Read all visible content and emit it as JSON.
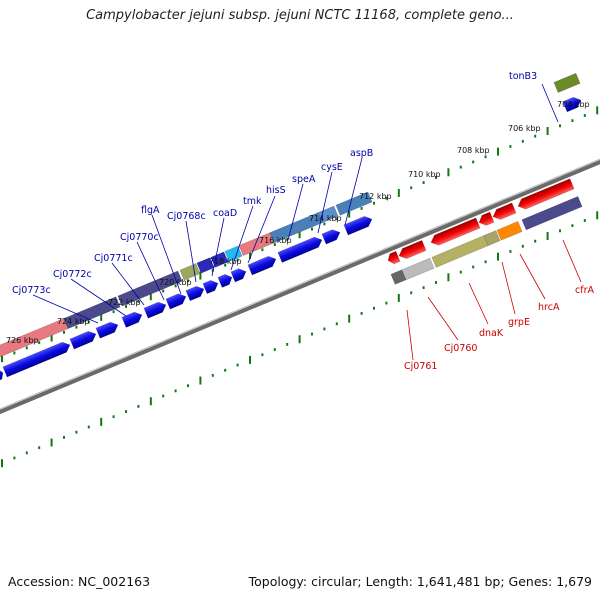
{
  "title": "Campylobacter jejuni subsp. jejuni NCTC 11168, complete geno...",
  "accession": "Accession: NC_002163",
  "topology": "Topology: circular; Length: 1,641,481 bp; Genes: 1,679",
  "ticks": [
    "704 kbp",
    "706 kbp",
    "708 kbp",
    "710 kbp",
    "712 kbp",
    "714 kbp",
    "716 kbp",
    "718 kbp",
    "720 kbp",
    "722 kbp",
    "724 kbp",
    "726 kbp"
  ],
  "genes_forward": [
    "tonB3",
    "aspB",
    "cysE",
    "speA",
    "hisS",
    "tmk",
    "coaD",
    "Cj0768c",
    "flgA",
    "Cj0770c",
    "Cj0771c",
    "Cj0772c",
    "Cj0773c"
  ],
  "genes_reverse": [
    "cfrA",
    "hrcA",
    "grpE",
    "dnaK",
    "Cj0760",
    "Cj0761"
  ],
  "colors": {
    "backbone": "#777777",
    "dots": "#117711",
    "forward_label": "#0000aa",
    "reverse_label": "#cc0000",
    "gene_blue": "#0a0adc",
    "gene_red": "#e00000"
  }
}
